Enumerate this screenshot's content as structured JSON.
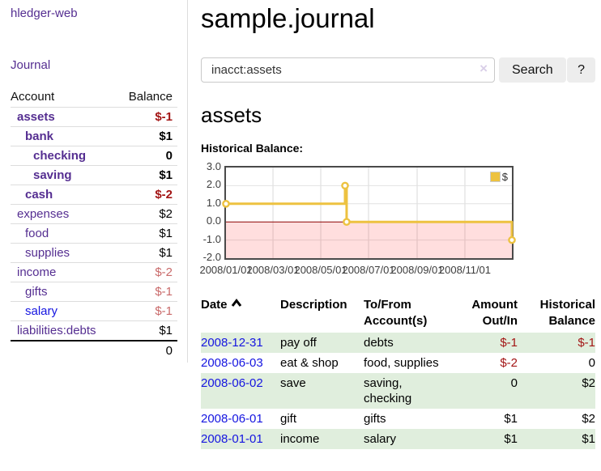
{
  "app": {
    "brand": "hledger-web",
    "nav_journal": "Journal"
  },
  "sidebar": {
    "header": {
      "account": "Account",
      "balance": "Balance"
    },
    "accounts": [
      {
        "name": "assets",
        "balance": "$-1",
        "indent": 0,
        "bold": true,
        "value_class": "neg-dark",
        "link": "purple"
      },
      {
        "name": "bank",
        "balance": "$1",
        "indent": 1,
        "bold": true,
        "value_class": "plain",
        "link": "purple"
      },
      {
        "name": "checking",
        "balance": "0",
        "indent": 2,
        "bold": true,
        "value_class": "plain",
        "link": "purple"
      },
      {
        "name": "saving",
        "balance": "$1",
        "indent": 2,
        "bold": true,
        "value_class": "plain",
        "link": "purple"
      },
      {
        "name": "cash",
        "balance": "$-2",
        "indent": 1,
        "bold": true,
        "value_class": "neg-dark",
        "link": "purple"
      },
      {
        "name": "expenses",
        "balance": "$2",
        "indent": 0,
        "bold": false,
        "value_class": "plain",
        "link": "purple"
      },
      {
        "name": "food",
        "balance": "$1",
        "indent": 1,
        "bold": false,
        "value_class": "plain",
        "link": "purple"
      },
      {
        "name": "supplies",
        "balance": "$1",
        "indent": 1,
        "bold": false,
        "value_class": "plain",
        "link": "purple"
      },
      {
        "name": "income",
        "balance": "$-2",
        "indent": 0,
        "bold": false,
        "value_class": "neg-light",
        "link": "purple"
      },
      {
        "name": "gifts",
        "balance": "$-1",
        "indent": 1,
        "bold": false,
        "value_class": "neg-light",
        "link": "purple"
      },
      {
        "name": "salary",
        "balance": "$-1",
        "indent": 1,
        "bold": false,
        "value_class": "neg-light",
        "link": "blue"
      },
      {
        "name": "liabilities:debts",
        "balance": "$1",
        "indent": 0,
        "bold": false,
        "value_class": "plain",
        "link": "purple"
      }
    ],
    "total": "0"
  },
  "header": {
    "title": "sample.journal"
  },
  "search": {
    "value": "inacct:assets",
    "clear_glyph": "×",
    "button_label": "Search",
    "help_label": "?"
  },
  "account_page": {
    "heading": "assets",
    "chart_label": "Historical Balance:"
  },
  "chart_data": {
    "type": "line",
    "title": "Historical Balance:",
    "series": [
      {
        "name": "$",
        "color": "#edc240",
        "step": true,
        "points": [
          [
            "2008-01-01",
            1
          ],
          [
            "2008-06-01",
            2
          ],
          [
            "2008-06-03",
            0
          ],
          [
            "2008-12-31",
            -1
          ]
        ]
      }
    ],
    "x_range": [
      "2008-01-01",
      "2008-12-31"
    ],
    "x_ticks": [
      "2008/01/01",
      "2008/03/01",
      "2008/05/01",
      "2008/07/01",
      "2008/09/01",
      "2008/11/01"
    ],
    "y_range": [
      -2,
      3
    ],
    "y_ticks": [
      "3.0",
      "2.0",
      "1.0",
      "0.0",
      "-1.0",
      "-2.0"
    ],
    "grid": true,
    "legend_position": "top-right",
    "zero_line_color": "#8b0000",
    "negative_region_color": "#f9dada"
  },
  "register": {
    "headers": [
      {
        "label": "Date",
        "align": "left",
        "sort_icon": true
      },
      {
        "label": "Description",
        "align": "left"
      },
      {
        "label": "To/From\nAccount(s)",
        "align": "left"
      },
      {
        "label": "Amount\nOut/In",
        "align": "right"
      },
      {
        "label": "Historical\nBalance",
        "align": "right"
      }
    ],
    "rows": [
      {
        "date": "2008-12-31",
        "description": "pay off",
        "accounts": "debts",
        "amount": "$-1",
        "amount_neg": true,
        "balance": "$-1",
        "balance_neg": true,
        "shaded": true
      },
      {
        "date": "2008-06-03",
        "description": "eat & shop",
        "accounts": "food, supplies",
        "amount": "$-2",
        "amount_neg": true,
        "balance": "0",
        "balance_neg": false,
        "shaded": false
      },
      {
        "date": "2008-06-02",
        "description": "save",
        "accounts": "saving,\nchecking",
        "amount": "0",
        "amount_neg": false,
        "balance": "$2",
        "balance_neg": false,
        "shaded": true
      },
      {
        "date": "2008-06-01",
        "description": "gift",
        "accounts": "gifts",
        "amount": "$1",
        "amount_neg": false,
        "balance": "$2",
        "balance_neg": false,
        "shaded": false
      },
      {
        "date": "2008-01-01",
        "description": "income",
        "accounts": "salary",
        "amount": "$1",
        "amount_neg": false,
        "balance": "$1",
        "balance_neg": false,
        "shaded": true
      }
    ]
  },
  "colors": {
    "link_purple": "#552e91",
    "link_blue": "#1515e0",
    "negative_dark": "#a31515",
    "negative_light": "#c96a6a",
    "row_shade_green": "#e0eedd",
    "series_gold": "#edc240"
  }
}
